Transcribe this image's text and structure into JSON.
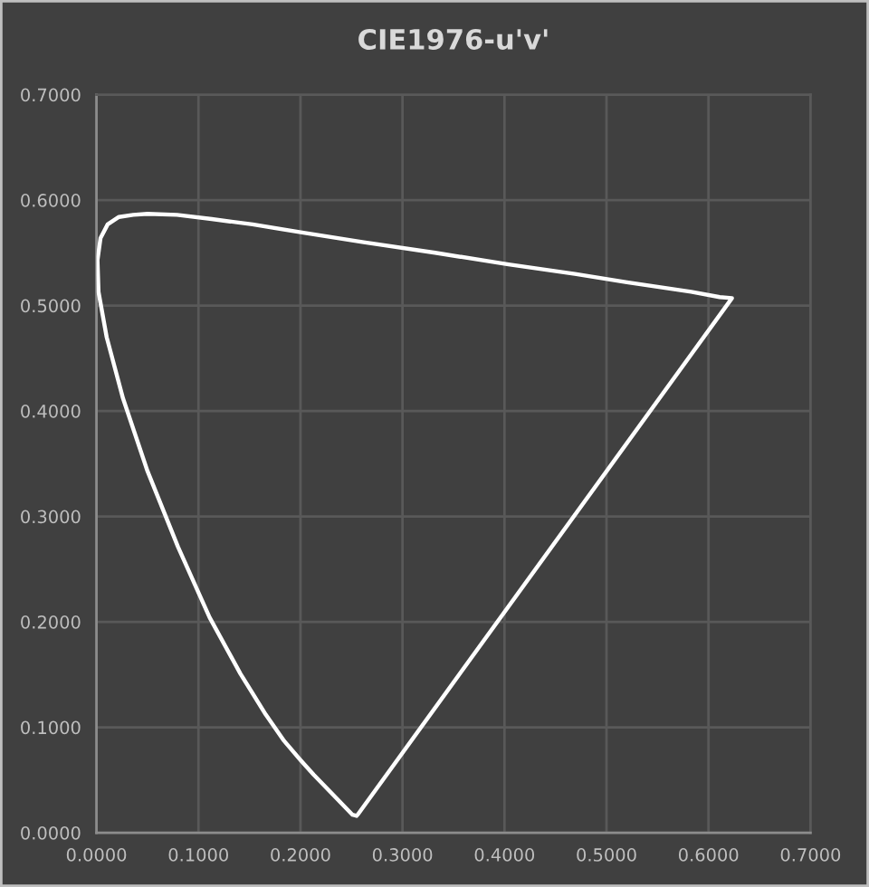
{
  "chart_data": {
    "type": "line",
    "title": "CIE1976-u'v'",
    "series": [
      {
        "color": "#ffffff",
        "x": [
          0.255,
          0.251,
          0.245,
          0.233,
          0.213,
          0.2,
          0.184,
          0.166,
          0.141,
          0.111,
          0.08,
          0.05,
          0.026,
          0.01,
          0.002,
          0.001,
          0.004,
          0.011,
          0.022,
          0.036,
          0.05,
          0.079,
          0.113,
          0.153,
          0.203,
          0.262,
          0.332,
          0.404,
          0.469,
          0.52,
          0.583,
          0.611,
          0.623,
          0.256
        ],
        "values": [
          0.016,
          0.017,
          0.023,
          0.035,
          0.055,
          0.069,
          0.087,
          0.112,
          0.151,
          0.204,
          0.271,
          0.343,
          0.412,
          0.47,
          0.513,
          0.543,
          0.564,
          0.577,
          0.584,
          0.586,
          0.587,
          0.586,
          0.582,
          0.577,
          0.569,
          0.56,
          0.55,
          0.539,
          0.53,
          0.522,
          0.513,
          0.508,
          0.507,
          0.017
        ]
      }
    ],
    "xlim": [
      0,
      0.7
    ],
    "ylim": [
      0,
      0.7
    ],
    "xticks": [
      {
        "value": 0,
        "label": "0.0000"
      },
      {
        "value": 0.1,
        "label": "0.1000"
      },
      {
        "value": 0.2,
        "label": "0.2000"
      },
      {
        "value": 0.3,
        "label": "0.3000"
      },
      {
        "value": 0.4,
        "label": "0.4000"
      },
      {
        "value": 0.5,
        "label": "0.5000"
      },
      {
        "value": 0.6,
        "label": "0.6000"
      },
      {
        "value": 0.7,
        "label": "0.7000"
      }
    ],
    "yticks": [
      {
        "value": 0,
        "label": "0.0000"
      },
      {
        "value": 0.1,
        "label": "0.1000"
      },
      {
        "value": 0.2,
        "label": "0.2000"
      },
      {
        "value": 0.3,
        "label": "0.3000"
      },
      {
        "value": 0.4,
        "label": "0.4000"
      },
      {
        "value": 0.5,
        "label": "0.5000"
      },
      {
        "value": 0.6,
        "label": "0.6000"
      },
      {
        "value": 0.7,
        "label": "0.7000"
      }
    ],
    "grid": true
  }
}
